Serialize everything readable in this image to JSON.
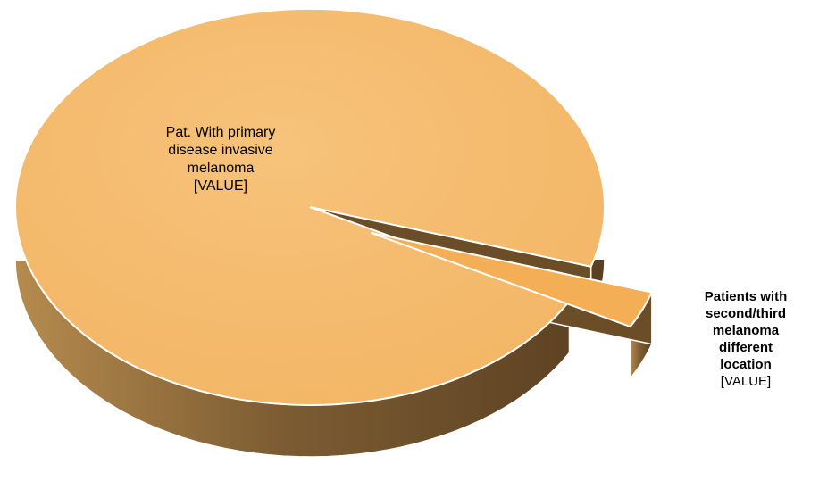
{
  "chart_data": {
    "type": "pie",
    "style": "3d-exploded",
    "title": "",
    "slices": [
      {
        "label": "Pat. With primary disease invasive melanoma",
        "label_lines": [
          "Pat. With primary",
          "disease invasive",
          "melanoma"
        ],
        "value_label": "[VALUE]",
        "value": 97,
        "color": "#F5BC6C"
      },
      {
        "label": "Patients with second/third melanoma different location",
        "label_lines": [
          "Patients with",
          "second/third",
          "melanoma",
          "different",
          "location"
        ],
        "value_label": "[VALUE]",
        "value": 3,
        "color": "#F4AE55"
      }
    ],
    "side_color_light": "#B58B4E",
    "side_color_dark": "#5E4424"
  }
}
